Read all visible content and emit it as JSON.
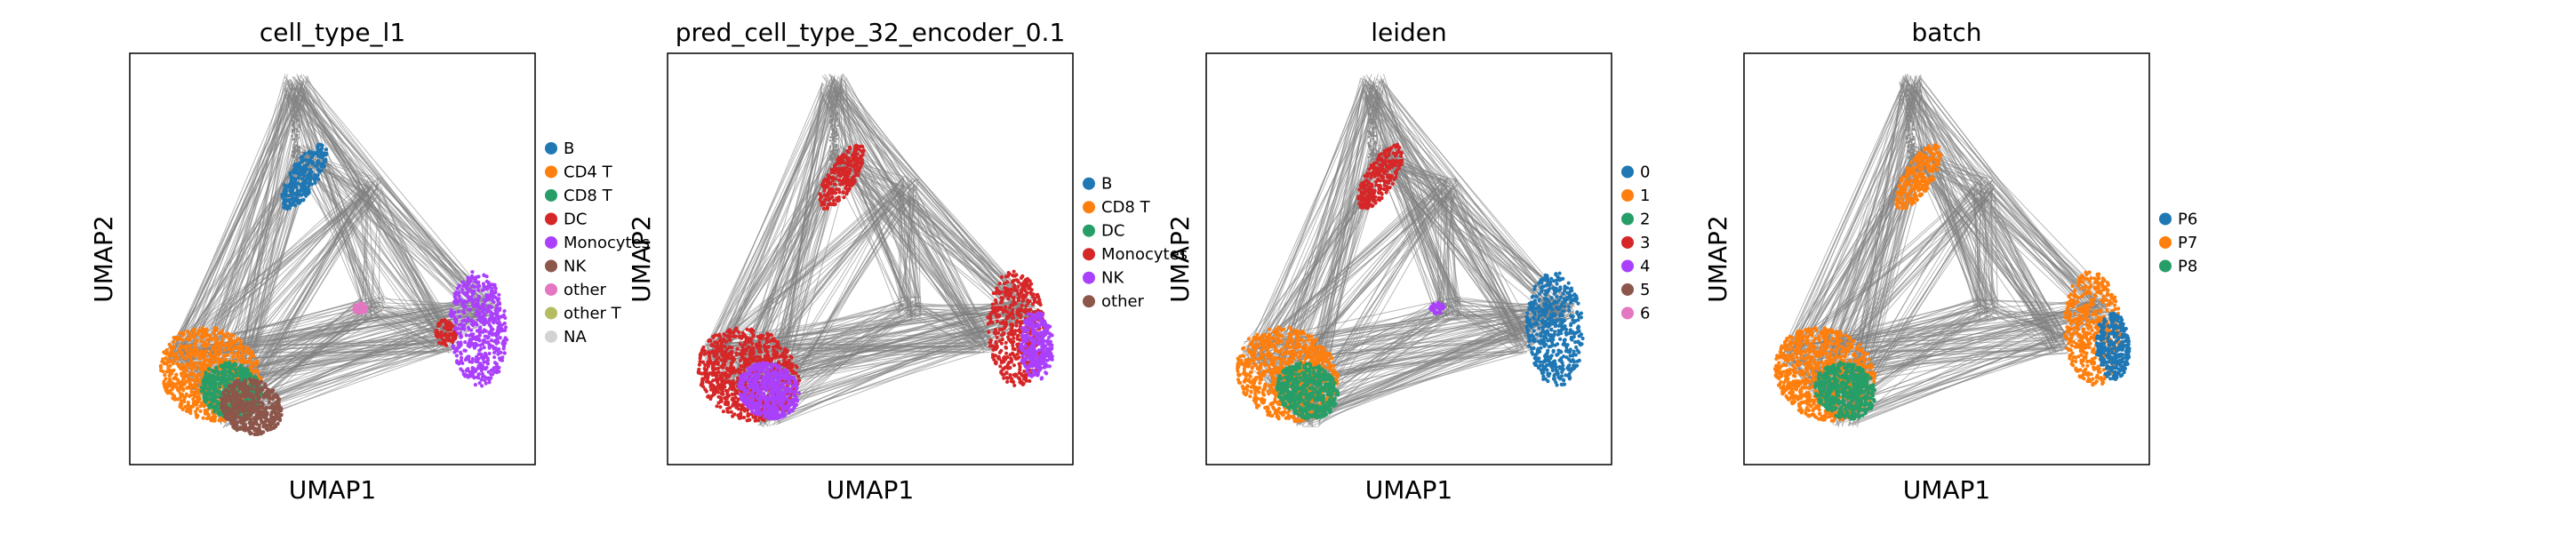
{
  "chart_data": [
    {
      "type": "scatter",
      "title": "cell_type_l1",
      "xlabel": "UMAP1",
      "ylabel": "UMAP2",
      "grid": false,
      "legend_placement": "right",
      "legend": [
        {
          "label": "B",
          "color": "#1f77b4"
        },
        {
          "label": "CD4 T",
          "color": "#ff7f0e"
        },
        {
          "label": "CD8 T",
          "color": "#279e68"
        },
        {
          "label": "DC",
          "color": "#d62728"
        },
        {
          "label": "Monocytes",
          "color": "#aa40fc"
        },
        {
          "label": "NK",
          "color": "#8c564b"
        },
        {
          "label": "other",
          "color": "#e377c2"
        },
        {
          "label": "other T",
          "color": "#b5bd61"
        },
        {
          "label": "NA",
          "color": "#d3d3d3"
        }
      ],
      "clusters": [
        {
          "name": "B",
          "color": "#1f77b4",
          "location": "top-center"
        },
        {
          "name": "Monocytes",
          "color": "#aa40fc",
          "location": "right"
        },
        {
          "name": "other",
          "color": "#e377c2",
          "location": "center"
        },
        {
          "name": "DC",
          "color": "#d62728",
          "location": "right-edge"
        },
        {
          "name": "CD4 T",
          "color": "#ff7f0e",
          "location": "bottom-left"
        },
        {
          "name": "CD8 T",
          "color": "#279e68",
          "location": "bottom-left"
        },
        {
          "name": "NK",
          "color": "#8c564b",
          "location": "bottom-left"
        }
      ]
    },
    {
      "type": "scatter",
      "title": "pred_cell_type_32_encoder_0.1",
      "xlabel": "UMAP1",
      "ylabel": "UMAP2",
      "grid": false,
      "legend_placement": "right",
      "legend": [
        {
          "label": "B",
          "color": "#1f77b4"
        },
        {
          "label": "CD8 T",
          "color": "#ff7f0e"
        },
        {
          "label": "DC",
          "color": "#279e68"
        },
        {
          "label": "Monocytes",
          "color": "#d62728"
        },
        {
          "label": "NK",
          "color": "#aa40fc"
        },
        {
          "label": "other",
          "color": "#8c564b"
        }
      ],
      "clusters": [
        {
          "name": "Monocytes",
          "color": "#d62728",
          "location": "top-center"
        },
        {
          "name": "Monocytes",
          "color": "#d62728",
          "location": "right"
        },
        {
          "name": "Monocytes",
          "color": "#d62728",
          "location": "bottom-left"
        },
        {
          "name": "NK",
          "color": "#aa40fc",
          "location": "bottom-left"
        },
        {
          "name": "NK",
          "color": "#aa40fc",
          "location": "right"
        }
      ]
    },
    {
      "type": "scatter",
      "title": "leiden",
      "xlabel": "UMAP1",
      "ylabel": "UMAP2",
      "grid": false,
      "legend_placement": "right",
      "legend": [
        {
          "label": "0",
          "color": "#1f77b4"
        },
        {
          "label": "1",
          "color": "#ff7f0e"
        },
        {
          "label": "2",
          "color": "#279e68"
        },
        {
          "label": "3",
          "color": "#d62728"
        },
        {
          "label": "4",
          "color": "#aa40fc"
        },
        {
          "label": "5",
          "color": "#8c564b"
        },
        {
          "label": "6",
          "color": "#e377c2"
        }
      ],
      "clusters": [
        {
          "name": "3",
          "color": "#d62728",
          "location": "top-center"
        },
        {
          "name": "0",
          "color": "#1f77b4",
          "location": "right"
        },
        {
          "name": "4",
          "color": "#aa40fc",
          "location": "center"
        },
        {
          "name": "1",
          "color": "#ff7f0e",
          "location": "bottom-left"
        },
        {
          "name": "2",
          "color": "#279e68",
          "location": "bottom-left"
        }
      ]
    },
    {
      "type": "scatter",
      "title": "batch",
      "xlabel": "UMAP1",
      "ylabel": "UMAP2",
      "grid": false,
      "legend_placement": "right",
      "legend": [
        {
          "label": "P6",
          "color": "#1f77b4"
        },
        {
          "label": "P7",
          "color": "#ff7f0e"
        },
        {
          "label": "P8",
          "color": "#279e68"
        }
      ],
      "clusters": [
        {
          "name": "P7",
          "color": "#ff7f0e",
          "location": "top-center"
        },
        {
          "name": "P7",
          "color": "#ff7f0e",
          "location": "right"
        },
        {
          "name": "P6",
          "color": "#1f77b4",
          "location": "right"
        },
        {
          "name": "P7",
          "color": "#ff7f0e",
          "location": "bottom-left"
        },
        {
          "name": "P8",
          "color": "#279e68",
          "location": "bottom-left"
        }
      ]
    }
  ],
  "edge_color": "#808080"
}
